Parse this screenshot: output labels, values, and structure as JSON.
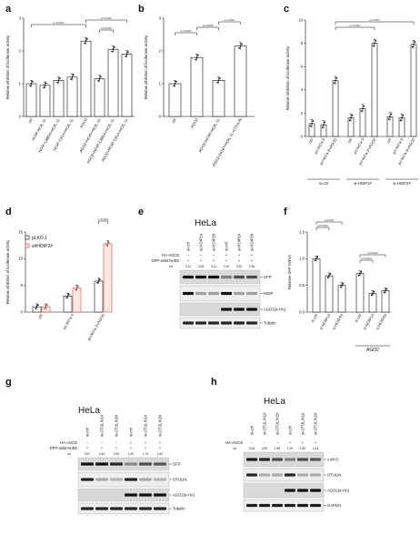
{
  "panels": {
    "a": {
      "label": "a",
      "ylabel": "Relative inhibition of luciferase activity",
      "yticks": [
        "0",
        "1",
        "2",
        "3"
      ],
      "pvalues": [
        "p<0.0001",
        "p=0.0026",
        "p=0.0052"
      ],
      "chart_data": {
        "type": "bar",
        "categories": [
          "ctrl",
          "HOIP-HOIL-1L",
          "HOIP-C885A+HOIL-1L",
          "HOIP-C91A+HOIL-1L",
          "AGO2",
          "AGO2+HOIP+HOIL-1L",
          "AGO2+HOIP-C885A+HOIL-1L",
          "AGO2+HOIP-C91A+HOIL-1L"
        ],
        "values": [
          1.0,
          0.95,
          1.1,
          1.2,
          2.3,
          1.15,
          2.05,
          1.9
        ],
        "ylim": [
          0,
          3
        ],
        "ylabel": "Relative inhibition of luciferase activity"
      }
    },
    "b": {
      "label": "b",
      "ylabel": "Relative inhibition of luciferase activity",
      "yticks": [
        "0",
        "1",
        "2",
        "3"
      ],
      "pvalues": [
        "p=0.0004",
        "p=0.0028",
        "p=0.0001"
      ],
      "chart_data": {
        "type": "bar",
        "categories": [
          "ctrl",
          "AGO2",
          "AGO2+HOIP+HOIL-1L",
          "AGO2+HOIP+HOIL-1L+OTULIN"
        ],
        "values": [
          1.0,
          1.8,
          1.1,
          2.15
        ],
        "ylim": [
          0,
          3
        ],
        "ylabel": "Relative inhibition of luciferase activity"
      }
    },
    "c": {
      "label": "c",
      "ylabel": "Relative inhibition of luciferase activity",
      "yticks": [
        "0",
        "2",
        "4",
        "6",
        "8",
        "10"
      ],
      "pvalues": [
        "p<0.0001",
        "p<0.0001"
      ],
      "groups": [
        "si-ctrl",
        "si-HOIP1#",
        "si-HOIP2#"
      ],
      "chart_data": {
        "type": "bar",
        "categories": [
          "ctrl",
          "pri-let7a-3",
          "pri-let7a-3+AGO2",
          "ctrl",
          "pri-let7a-3",
          "pri-let7a-3+AGO2",
          "ctrl",
          "pri-let7a-3",
          "pri-let7a-3+AGO2"
        ],
        "values": [
          1.1,
          1.0,
          4.8,
          1.6,
          2.4,
          8.0,
          1.7,
          1.6,
          7.9
        ],
        "ylim": [
          0,
          10
        ],
        "ylabel": "Relative inhibition of luciferase activity"
      }
    },
    "d": {
      "label": "d",
      "ylabel": "Relative inhibition of luciferase activity",
      "yticks": [
        "0",
        "5",
        "10",
        "15"
      ],
      "pvalues": [
        "p<0.0001"
      ],
      "legend": [
        "pLKO.1",
        "shHOIP2#"
      ],
      "chart_data": {
        "type": "bar",
        "categories": [
          "ctrl",
          "pri-let7a-3",
          "pri-let7a-3+AGO2"
        ],
        "series": [
          {
            "name": "pLKO.1",
            "values": [
              1.0,
              3.0,
              5.8
            ]
          },
          {
            "name": "shHOIP2#",
            "values": [
              1.0,
              4.5,
              12.8
            ]
          }
        ],
        "ylim": [
          0,
          15
        ],
        "ylabel": "Relative inhibition of luciferase activity"
      }
    },
    "e": {
      "label": "e",
      "title": "HeLa",
      "rows": [
        {
          "label": "HA-AGO2",
          "values": [
            "−",
            "−",
            "−",
            "+",
            "+",
            "+"
          ]
        },
        {
          "label": "GFP-4xlet7a-BS",
          "values": [
            "+",
            "+",
            "+",
            "+",
            "+",
            "+"
          ]
        }
      ],
      "lanes": [
        "si-ctrl",
        "si-HOIP1#",
        "si-HOIP2#",
        "si-ctrl",
        "si-HOIP1#",
        "si-HOIP2#"
      ],
      "ratio_label": "r/a",
      "ratios": [
        "3.12",
        "3.08",
        "3.11",
        "1.00",
        "0.30",
        "0.36"
      ],
      "blots": [
        "GFP",
        "HOIP",
        "AGO2(α-HA)",
        "Tubulin"
      ]
    },
    "f": {
      "label": "f",
      "ylabel": "Relative GFP mRNA",
      "yticks": [
        "0.0",
        "0.5",
        "1.0",
        "1.5"
      ],
      "pvalues": [
        "p=0.0002",
        "p=0.002",
        "p<0.0001",
        "p=0.0001"
      ],
      "group_label": "AGO2",
      "chart_data": {
        "type": "bar",
        "categories": [
          "si-ctrl",
          "si-HOIP1#",
          "si-HOIP2#",
          "si-ctrl",
          "si-HOIP1#",
          "si-HOIP2#"
        ],
        "values": [
          1.0,
          0.68,
          0.5,
          0.72,
          0.35,
          0.4
        ],
        "ylim": [
          0,
          1.5
        ],
        "ylabel": "Relative GFP mRNA"
      }
    },
    "g": {
      "label": "g",
      "title": "HeLa",
      "rows": [
        {
          "label": "HA-AGO2",
          "values": [
            "−",
            "−",
            "−",
            "+",
            "+",
            "+"
          ]
        },
        {
          "label": "GFP-4xlet7a-BS",
          "values": [
            "+",
            "+",
            "+",
            "+",
            "+",
            "+"
          ]
        }
      ],
      "lanes": [
        "si-ctrl",
        "si-OTULIN1#",
        "si-OTULIN2#",
        "si-ctrl",
        "si-OTULIN1#",
        "si-OTULIN2#"
      ],
      "ratio_label": "r/a",
      "ratios": [
        "3.67",
        "3.44",
        "2.94",
        "1.00",
        "1.74",
        "1.62"
      ],
      "blots": [
        "GFP",
        "OTULIN",
        "AGO2(α-HA)",
        "Tubulin"
      ]
    },
    "h": {
      "label": "h",
      "title": "HeLa",
      "rows": [
        {
          "label": "HA-AGO2",
          "values": [
            "−",
            "−",
            "−",
            "+",
            "+",
            "+"
          ]
        }
      ],
      "lanes": [
        "si-ctrl",
        "si-OTULIN1#",
        "si-OTULIN2#",
        "si-ctrl",
        "si-OTULIN1#",
        "si-OTULIN2#"
      ],
      "ratio_label": "r/a",
      "ratios": [
        "3.06",
        "2.90",
        "1.85",
        "1.00",
        "1.80",
        "1.64"
      ],
      "blots": [
        "c-MYC",
        "OTULIN",
        "AGO2(α-HA)",
        "GAPDH"
      ]
    }
  }
}
